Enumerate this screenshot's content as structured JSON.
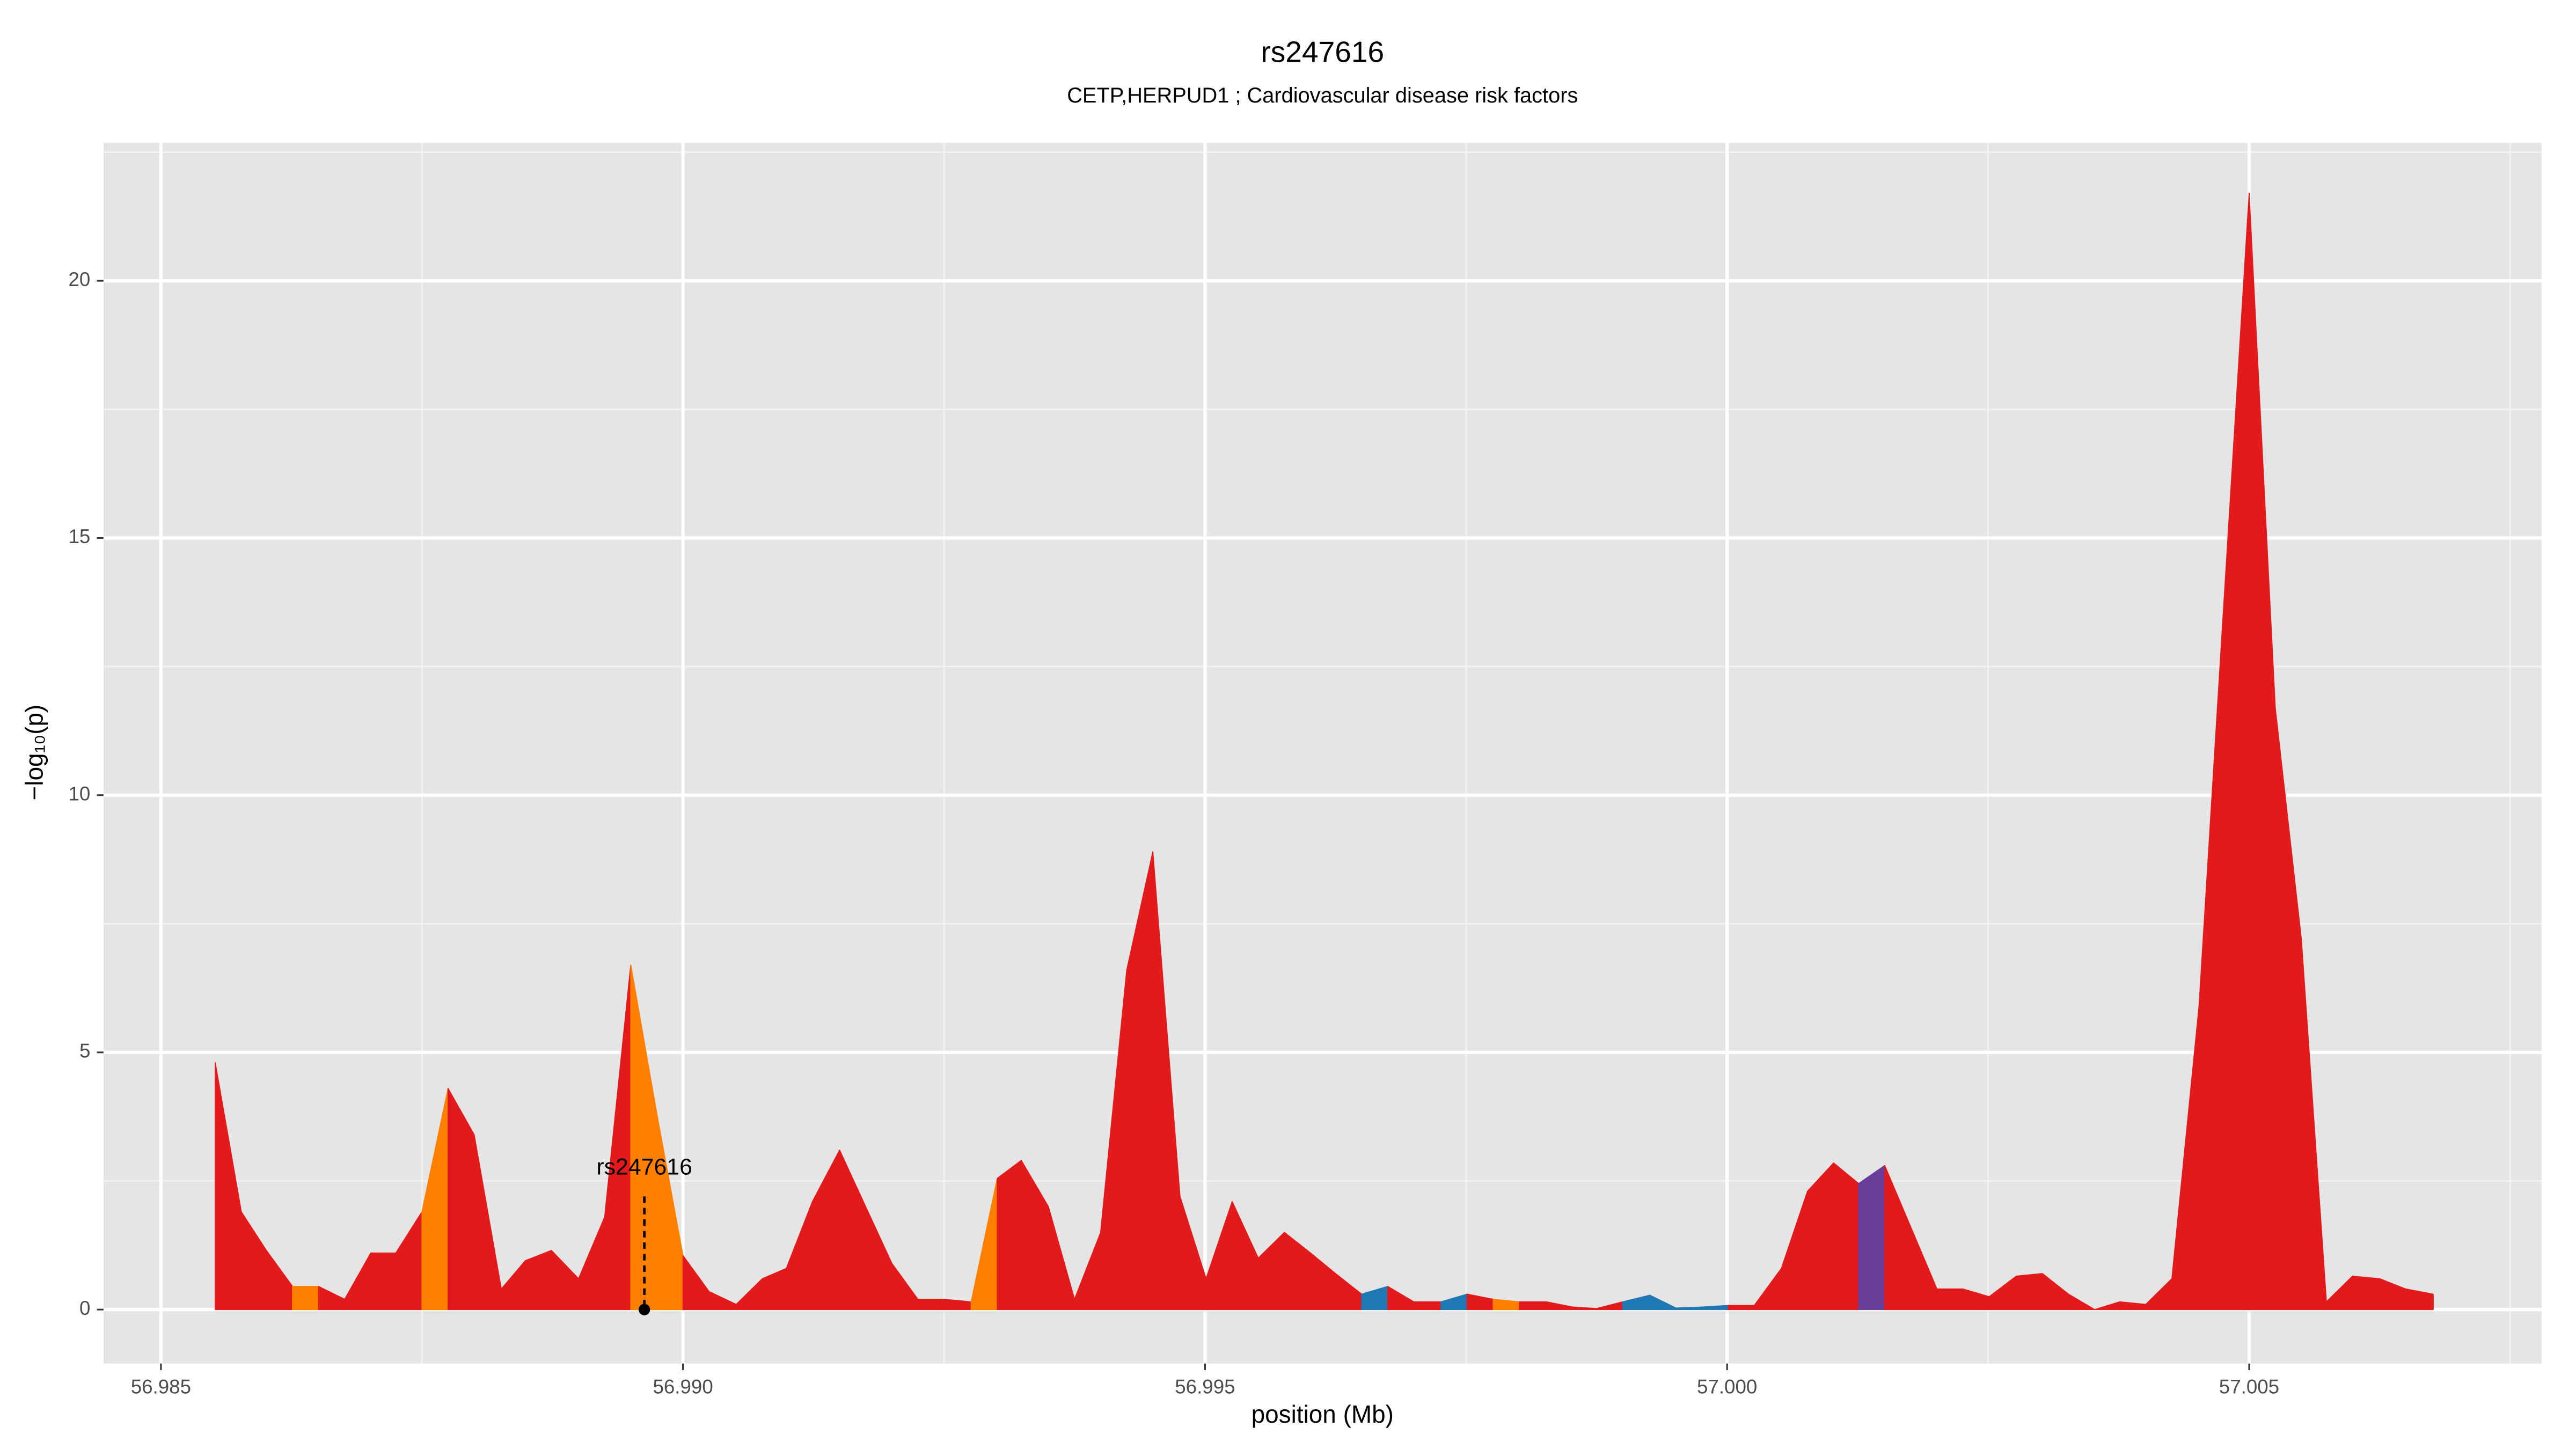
{
  "chart_data": {
    "type": "area",
    "title": "rs247616",
    "subtitle": "CETP,HERPUD1 ; Cardiovascular disease risk factors",
    "x_label": "position (Mb)",
    "y_label": "−log₁₀(p)",
    "x": [
      56.98552,
      56.98577,
      56.98601,
      56.98626,
      56.98651,
      56.98676,
      56.98701,
      56.98725,
      56.9875,
      56.98775,
      56.988,
      56.98826,
      56.98849,
      56.98874,
      56.989,
      56.98925,
      56.9895,
      56.98975,
      56.99,
      56.99025,
      56.99051,
      56.99076,
      56.99099,
      56.99124,
      56.9915,
      56.99175,
      56.992,
      56.99225,
      56.9925,
      56.99276,
      56.99301,
      56.99324,
      56.9935,
      56.99375,
      56.994,
      56.99425,
      56.9945,
      56.99476,
      56.99501,
      56.99526,
      56.99551,
      56.99576,
      56.99601,
      56.99625,
      56.9965,
      56.99675,
      56.997,
      56.99726,
      56.99751,
      56.99776,
      56.99801,
      56.99827,
      56.99852,
      56.99875,
      56.999,
      56.99926,
      56.99951,
      56.99976,
      57.00001,
      57.00026,
      57.00052,
      57.00077,
      57.00102,
      57.00126,
      57.00151,
      57.00176,
      57.00201,
      57.00226,
      57.00251,
      57.00277,
      57.00302,
      57.00327,
      57.00352,
      57.00376,
      57.00401,
      57.00426,
      57.00452,
      57.005,
      57.00525,
      57.0055,
      57.00574,
      57.00599,
      57.00625,
      57.0065,
      57.00676
    ],
    "values": [
      4.8,
      1.9,
      1.15,
      0.45,
      0.45,
      0.2,
      1.1,
      1.1,
      1.9,
      4.3,
      3.4,
      0.4,
      0.95,
      1.15,
      0.6,
      1.8,
      6.7,
      3.8,
      1.05,
      0.35,
      0.1,
      0.6,
      0.8,
      2.1,
      3.1,
      2.0,
      0.9,
      0.2,
      0.2,
      0.15,
      2.55,
      2.9,
      2.0,
      0.2,
      1.5,
      6.6,
      8.9,
      2.2,
      0.6,
      2.1,
      1.0,
      1.5,
      1.1,
      0.7,
      0.3,
      0.45,
      0.15,
      0.15,
      0.3,
      0.2,
      0.15,
      0.15,
      0.05,
      0.02,
      0.15,
      0.28,
      0.03,
      0.05,
      0.08,
      0.08,
      0.8,
      2.3,
      2.85,
      2.45,
      2.8,
      1.6,
      0.4,
      0.4,
      0.25,
      0.65,
      0.7,
      0.3,
      0.0,
      0.15,
      0.1,
      0.6,
      5.9,
      21.7,
      11.7,
      7.2,
      0.15,
      0.65,
      0.6,
      0.4,
      0.3
    ],
    "colors": [
      "#e31a1c",
      "#e31a1c",
      "#e31a1c",
      "#ff7f00",
      "#e31a1c",
      "#e31a1c",
      "#e31a1c",
      "#e31a1c",
      "#ff7f00",
      "#e31a1c",
      "#e31a1c",
      "#e31a1c",
      "#e31a1c",
      "#e31a1c",
      "#e31a1c",
      "#e31a1c",
      "#ff7f00",
      "#ff7f00",
      "#e31a1c",
      "#e31a1c",
      "#e31a1c",
      "#e31a1c",
      "#e31a1c",
      "#e31a1c",
      "#e31a1c",
      "#e31a1c",
      "#e31a1c",
      "#e31a1c",
      "#e31a1c",
      "#ff7f00",
      "#e31a1c",
      "#e31a1c",
      "#e31a1c",
      "#e31a1c",
      "#e31a1c",
      "#e31a1c",
      "#e31a1c",
      "#e31a1c",
      "#e31a1c",
      "#e31a1c",
      "#e31a1c",
      "#e31a1c",
      "#e31a1c",
      "#e31a1c",
      "#1f78b4",
      "#e31a1c",
      "#e31a1c",
      "#1f78b4",
      "#e31a1c",
      "#ff7f00",
      "#e31a1c",
      "#e31a1c",
      "#e31a1c",
      "#e31a1c",
      "#1f78b4",
      "#1f78b4",
      "#1f78b4",
      "#1f78b4",
      "#e31a1c",
      "#e31a1c",
      "#e31a1c",
      "#e31a1c",
      "#e31a1c",
      "#6a3d9a",
      "#e31a1c",
      "#e31a1c",
      "#e31a1c",
      "#e31a1c",
      "#e31a1c",
      "#e31a1c",
      "#e31a1c",
      "#e31a1c",
      "#e31a1c",
      "#e31a1c",
      "#e31a1c",
      "#e31a1c",
      "#e31a1c",
      "#e31a1c",
      "#e31a1c",
      "#e31a1c",
      "#e31a1c",
      "#e31a1c",
      "#e31a1c",
      "#e31a1c",
      "#e31a1c"
    ],
    "annotation": {
      "text": "rs247616",
      "x": 56.98963,
      "y": 2.2
    },
    "xlim": [
      56.98445,
      57.0078
    ],
    "ylim": [
      -1.05,
      22.68
    ],
    "xticks": [
      56.985,
      {
        "value": 56.99,
        "label": "56.990"
      },
      56.995,
      {
        "value": 57.0,
        "label": "57.000"
      },
      57.005
    ],
    "yticks": [
      0,
      5,
      10,
      15,
      20
    ],
    "x_minor": [
      56.9875,
      56.9925,
      56.9975,
      57.0025,
      57.0075
    ],
    "y_minor": [
      2.5,
      7.5,
      12.5,
      17.5,
      22.5
    ],
    "grid": true
  }
}
